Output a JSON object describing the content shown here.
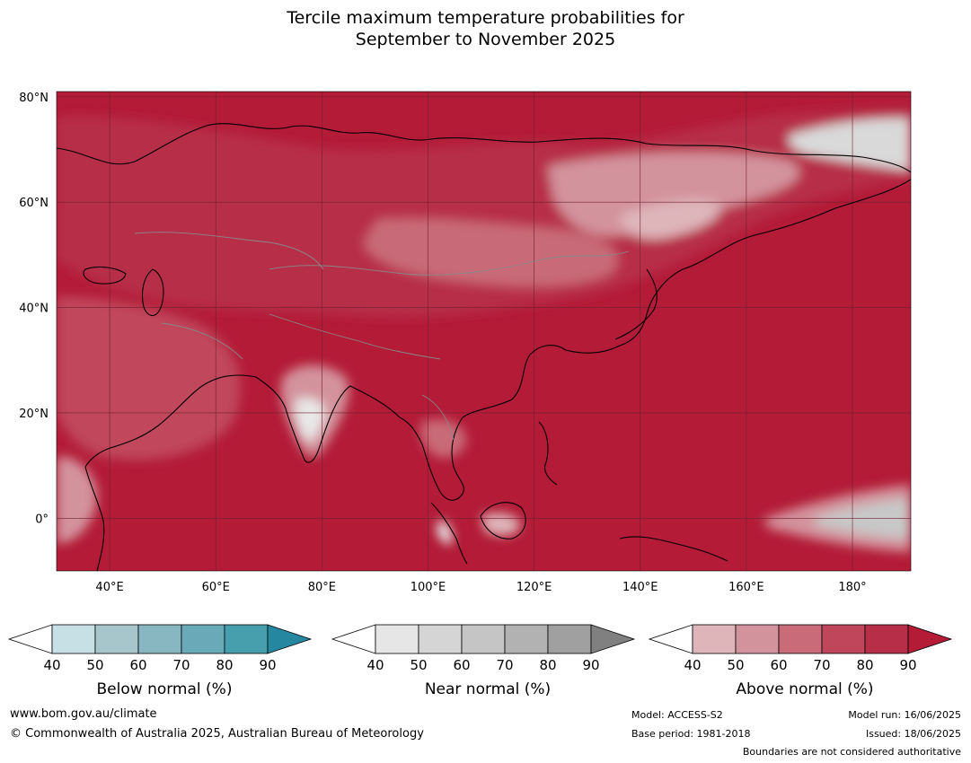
{
  "title": {
    "line1": "Tercile maximum temperature probabilities for",
    "line2": "September to November 2025"
  },
  "map": {
    "lat_labels": [
      "80°N",
      "60°N",
      "40°N",
      "20°N",
      "0°"
    ],
    "lon_labels": [
      "40°E",
      "60°E",
      "80°E",
      "100°E",
      "120°E",
      "140°E",
      "160°E",
      "180°"
    ],
    "extent": {
      "lon_min": 30,
      "lon_max": 191,
      "lat_min": -10,
      "lat_max": 81
    },
    "dominant_category": "above-normal",
    "colors": {
      "ocean_above_90": "#b31b37",
      "above_80": "#b72e48",
      "above_70": "#c0475b",
      "above_60": "#c96b78",
      "above_50": "#d3939c",
      "above_40": "#deb6ba",
      "near_40": "#e8e8e8",
      "near_50": "#d9d9d9",
      "near_60": "#c8c8c8",
      "coast": "#000000",
      "border": "#888888",
      "grid": "#6e2030"
    }
  },
  "colorbars": [
    {
      "label": "Below normal (%)",
      "ticks": [
        "40",
        "50",
        "60",
        "70",
        "80",
        "90"
      ],
      "colors": [
        "#ffffff",
        "#c6e0e6",
        "#a7c6cc",
        "#88b6c1",
        "#6aaab8",
        "#479fae",
        "#2688a0"
      ]
    },
    {
      "label": "Near normal (%)",
      "ticks": [
        "40",
        "50",
        "60",
        "70",
        "80",
        "90"
      ],
      "colors": [
        "#ffffff",
        "#e6e6e6",
        "#d5d5d5",
        "#c5c5c5",
        "#b2b2b2",
        "#a0a0a0",
        "#808080"
      ]
    },
    {
      "label": "Above normal (%)",
      "ticks": [
        "40",
        "50",
        "60",
        "70",
        "80",
        "90"
      ],
      "colors": [
        "#ffffff",
        "#deb6ba",
        "#d3939c",
        "#c96b78",
        "#c0475b",
        "#b72e48",
        "#b31b37"
      ]
    }
  ],
  "footer": {
    "url": "www.bom.gov.au/climate",
    "copyright": "© Commonwealth of Australia 2025, Australian Bureau of Meteorology",
    "model": "Model: ACCESS-S2",
    "base_period": "Base period: 1981-2018",
    "model_run": "Model run: 16/06/2025",
    "issued": "Issued: 18/06/2025",
    "disclaimer": "Boundaries are not considered authoritative"
  }
}
